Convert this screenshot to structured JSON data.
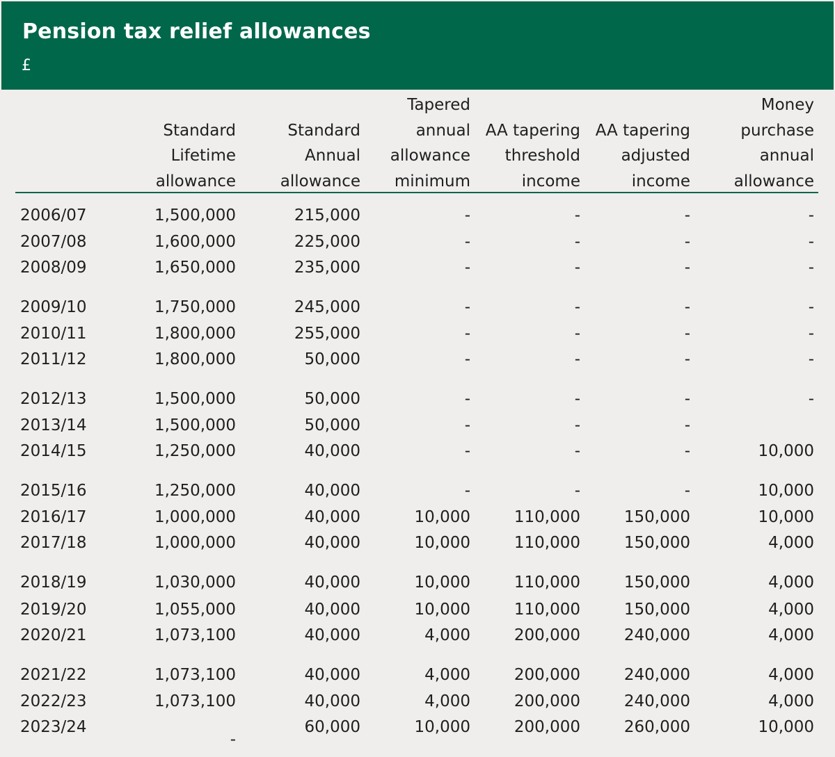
{
  "title": "Pension tax relief allowances",
  "unit": "£",
  "colors": {
    "header_bg": "#00674a",
    "page_bg": "#efeeec",
    "rule": "#00674a"
  },
  "columns": [
    "Standard Lifetime allowance",
    "Standard Annual allowance",
    "Tapered annual allowance minimum",
    "AA tapering threshold income",
    "AA tapering adjusted income",
    "Money purchase annual allowance"
  ],
  "column_lines": [
    [
      "Standard",
      "Lifetime",
      "allowance"
    ],
    [
      "Standard",
      "Annual",
      "allowance"
    ],
    [
      "Tapered",
      "annual",
      "allowance",
      "minimum"
    ],
    [
      "AA tapering",
      "threshold",
      "income"
    ],
    [
      "AA tapering",
      "adjusted",
      "income"
    ],
    [
      "Money",
      "purchase",
      "annual",
      "allowance"
    ]
  ],
  "rows": [
    {
      "year": "2006/07",
      "values": [
        "1,500,000",
        "215,000",
        "-",
        "-",
        "-",
        "-"
      ]
    },
    {
      "year": "2007/08",
      "values": [
        "1,600,000",
        "225,000",
        "-",
        "-",
        "-",
        "-"
      ]
    },
    {
      "year": "2008/09",
      "values": [
        "1,650,000",
        "235,000",
        "-",
        "-",
        "-",
        "-"
      ]
    },
    {
      "year": "2009/10",
      "values": [
        "1,750,000",
        "245,000",
        "-",
        "-",
        "-",
        "-"
      ]
    },
    {
      "year": "2010/11",
      "values": [
        "1,800,000",
        "255,000",
        "-",
        "-",
        "-",
        "-"
      ]
    },
    {
      "year": "2011/12",
      "values": [
        "1,800,000",
        "50,000",
        "-",
        "-",
        "-",
        "-"
      ]
    },
    {
      "year": "2012/13",
      "values": [
        "1,500,000",
        "50,000",
        "-",
        "-",
        "-",
        "-"
      ]
    },
    {
      "year": "2013/14",
      "values": [
        "1,500,000",
        "50,000",
        "-",
        "-",
        "-",
        ""
      ]
    },
    {
      "year": "2014/15",
      "values": [
        "1,250,000",
        "40,000",
        "-",
        "-",
        "-",
        "10,000"
      ]
    },
    {
      "year": "2015/16",
      "values": [
        "1,250,000",
        "40,000",
        "-",
        "-",
        "-",
        "10,000"
      ]
    },
    {
      "year": "2016/17",
      "values": [
        "1,000,000",
        "40,000",
        "10,000",
        "110,000",
        "150,000",
        "10,000"
      ]
    },
    {
      "year": "2017/18",
      "values": [
        "1,000,000",
        "40,000",
        "10,000",
        "110,000",
        "150,000",
        "4,000"
      ]
    },
    {
      "year": "2018/19",
      "values": [
        "1,030,000",
        "40,000",
        "10,000",
        "110,000",
        "150,000",
        "4,000"
      ]
    },
    {
      "year": "2019/20",
      "values": [
        "1,055,000",
        "40,000",
        "10,000",
        "110,000",
        "150,000",
        "4,000"
      ]
    },
    {
      "year": "2020/21",
      "values": [
        "1,073,100",
        "40,000",
        "4,000",
        "200,000",
        "240,000",
        "4,000"
      ]
    },
    {
      "year": "2021/22",
      "values": [
        "1,073,100",
        "40,000",
        "4,000",
        "200,000",
        "240,000",
        "4,000"
      ]
    },
    {
      "year": "2022/23",
      "values": [
        "1,073,100",
        "40,000",
        "4,000",
        "200,000",
        "240,000",
        "4,000"
      ]
    },
    {
      "year": "2023/24",
      "values": [
        "-",
        "60,000",
        "10,000",
        "200,000",
        "260,000",
        "10,000"
      ]
    }
  ]
}
